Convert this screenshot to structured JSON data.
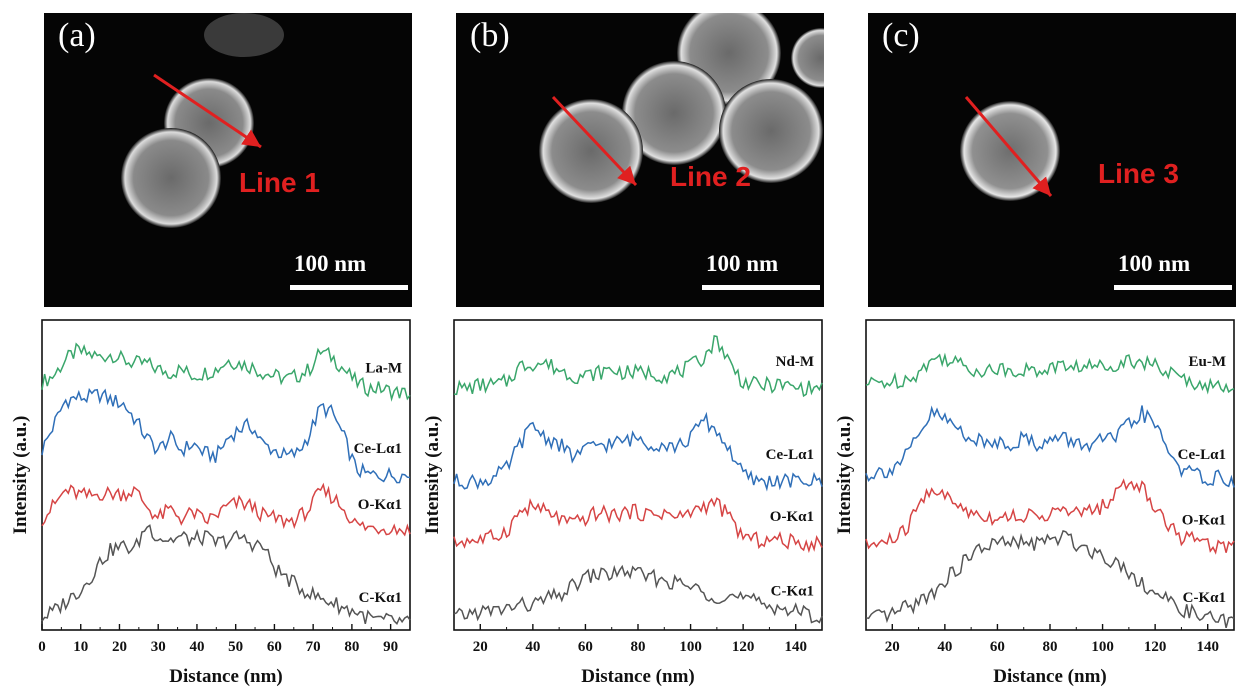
{
  "panels": [
    {
      "label": "(a)",
      "line_label": "Line 1",
      "scale_label": "100 nm",
      "ylabel": "Intensity (a.u.)",
      "xlabel": "Distance (nm)"
    },
    {
      "label": "(b)",
      "line_label": "Line 2",
      "scale_label": "100 nm",
      "ylabel": "Intensity (a.u.)",
      "xlabel": "Distance (nm)"
    },
    {
      "label": "(c)",
      "line_label": "Line 3",
      "scale_label": "100 nm",
      "ylabel": "Intensity (a.u.)",
      "xlabel": "Distance (nm)"
    }
  ],
  "colors": {
    "green": "#3aa66b",
    "blue": "#2f6fb8",
    "red": "#d64545",
    "gray": "#555555",
    "arrow": "#e02020"
  },
  "chart_data": [
    {
      "type": "line",
      "xlabel": "Distance (nm)",
      "ylabel": "Intensity (a.u.)",
      "xlim": [
        0,
        95
      ],
      "xticks": [
        0,
        10,
        20,
        30,
        40,
        50,
        60,
        70,
        80,
        90
      ],
      "series": [
        {
          "name": "La-M",
          "color": "#3aa66b",
          "x": [
            0,
            3,
            6,
            9,
            12,
            15,
            18,
            21,
            24,
            27,
            30,
            33,
            36,
            39,
            42,
            45,
            48,
            51,
            54,
            57,
            60,
            63,
            66,
            69,
            72,
            75,
            78,
            81,
            84,
            87,
            90,
            95
          ],
          "y": [
            0.8,
            0.82,
            0.87,
            0.9,
            0.89,
            0.88,
            0.89,
            0.87,
            0.86,
            0.86,
            0.84,
            0.83,
            0.84,
            0.82,
            0.83,
            0.84,
            0.87,
            0.86,
            0.85,
            0.83,
            0.82,
            0.81,
            0.82,
            0.84,
            0.9,
            0.88,
            0.84,
            0.8,
            0.78,
            0.78,
            0.77,
            0.76
          ]
        },
        {
          "name": "Ce-Lα1",
          "color": "#2f6fb8",
          "x": [
            0,
            3,
            6,
            9,
            12,
            15,
            18,
            21,
            24,
            27,
            30,
            33,
            36,
            39,
            42,
            45,
            48,
            51,
            54,
            57,
            60,
            63,
            66,
            69,
            72,
            75,
            78,
            81,
            84,
            87,
            90,
            95
          ],
          "y": [
            0.58,
            0.66,
            0.74,
            0.75,
            0.75,
            0.76,
            0.74,
            0.73,
            0.68,
            0.62,
            0.58,
            0.62,
            0.58,
            0.6,
            0.57,
            0.56,
            0.62,
            0.65,
            0.66,
            0.6,
            0.58,
            0.56,
            0.57,
            0.63,
            0.72,
            0.7,
            0.62,
            0.52,
            0.5,
            0.5,
            0.5,
            0.5
          ]
        },
        {
          "name": "O-Kα1",
          "color": "#d64545",
          "x": [
            0,
            3,
            6,
            9,
            12,
            15,
            18,
            21,
            24,
            27,
            30,
            33,
            36,
            39,
            42,
            45,
            48,
            51,
            54,
            57,
            60,
            63,
            66,
            69,
            72,
            75,
            78,
            81,
            84,
            87,
            90,
            95
          ],
          "y": [
            0.36,
            0.4,
            0.45,
            0.44,
            0.43,
            0.44,
            0.44,
            0.44,
            0.45,
            0.4,
            0.36,
            0.39,
            0.36,
            0.38,
            0.35,
            0.37,
            0.4,
            0.41,
            0.4,
            0.37,
            0.36,
            0.35,
            0.36,
            0.39,
            0.45,
            0.43,
            0.39,
            0.34,
            0.33,
            0.33,
            0.33,
            0.32
          ]
        },
        {
          "name": "C-Kα1",
          "color": "#555555",
          "x": [
            0,
            3,
            6,
            9,
            12,
            15,
            18,
            21,
            24,
            27,
            30,
            33,
            36,
            39,
            42,
            45,
            48,
            51,
            54,
            57,
            60,
            63,
            66,
            69,
            72,
            75,
            78,
            81,
            84,
            87,
            90,
            95
          ],
          "y": [
            0.04,
            0.06,
            0.09,
            0.12,
            0.16,
            0.22,
            0.26,
            0.27,
            0.26,
            0.34,
            0.3,
            0.29,
            0.3,
            0.29,
            0.3,
            0.28,
            0.29,
            0.3,
            0.28,
            0.27,
            0.2,
            0.17,
            0.14,
            0.12,
            0.1,
            0.09,
            0.07,
            0.06,
            0.04,
            0.03,
            0.03,
            0.02
          ]
        }
      ],
      "grid": false
    },
    {
      "type": "line",
      "xlabel": "Distance (nm)",
      "ylabel": "Intensity (a.u.)",
      "xlim": [
        10,
        150
      ],
      "xticks": [
        20,
        40,
        60,
        80,
        100,
        120,
        140
      ],
      "series": [
        {
          "name": "Nd-M",
          "color": "#3aa66b",
          "x": [
            10,
            15,
            20,
            25,
            30,
            35,
            40,
            45,
            50,
            55,
            60,
            65,
            70,
            75,
            80,
            85,
            90,
            95,
            100,
            105,
            110,
            115,
            120,
            125,
            130,
            135,
            140,
            145,
            150
          ],
          "y": [
            0.78,
            0.78,
            0.79,
            0.79,
            0.8,
            0.85,
            0.86,
            0.86,
            0.84,
            0.82,
            0.82,
            0.83,
            0.84,
            0.83,
            0.83,
            0.83,
            0.82,
            0.83,
            0.85,
            0.88,
            0.94,
            0.86,
            0.8,
            0.79,
            0.79,
            0.79,
            0.78,
            0.78,
            0.78
          ]
        },
        {
          "name": "Ce-Lα1",
          "color": "#2f6fb8",
          "x": [
            10,
            15,
            20,
            25,
            30,
            35,
            40,
            45,
            50,
            55,
            60,
            65,
            70,
            75,
            80,
            85,
            90,
            95,
            100,
            105,
            110,
            115,
            120,
            125,
            130,
            135,
            140,
            145,
            150
          ],
          "y": [
            0.48,
            0.48,
            0.48,
            0.49,
            0.52,
            0.6,
            0.66,
            0.62,
            0.6,
            0.56,
            0.58,
            0.6,
            0.6,
            0.61,
            0.62,
            0.6,
            0.6,
            0.59,
            0.62,
            0.68,
            0.64,
            0.58,
            0.5,
            0.48,
            0.48,
            0.48,
            0.48,
            0.48,
            0.48
          ]
        },
        {
          "name": "O-Kα1",
          "color": "#d64545",
          "x": [
            10,
            15,
            20,
            25,
            30,
            35,
            40,
            45,
            50,
            55,
            60,
            65,
            70,
            75,
            80,
            85,
            90,
            95,
            100,
            105,
            110,
            115,
            120,
            125,
            130,
            135,
            140,
            145,
            150
          ],
          "y": [
            0.28,
            0.29,
            0.29,
            0.3,
            0.32,
            0.38,
            0.4,
            0.38,
            0.36,
            0.34,
            0.36,
            0.38,
            0.37,
            0.38,
            0.38,
            0.37,
            0.38,
            0.36,
            0.38,
            0.4,
            0.41,
            0.36,
            0.3,
            0.29,
            0.29,
            0.29,
            0.28,
            0.28,
            0.28
          ]
        },
        {
          "name": "C-Kα1",
          "color": "#555555",
          "x": [
            10,
            15,
            20,
            25,
            30,
            35,
            40,
            45,
            50,
            55,
            60,
            65,
            70,
            75,
            80,
            85,
            90,
            95,
            100,
            105,
            110,
            115,
            120,
            125,
            130,
            135,
            140,
            145,
            150
          ],
          "y": [
            0.04,
            0.05,
            0.06,
            0.06,
            0.07,
            0.08,
            0.08,
            0.1,
            0.11,
            0.14,
            0.17,
            0.18,
            0.18,
            0.19,
            0.18,
            0.17,
            0.16,
            0.15,
            0.14,
            0.12,
            0.11,
            0.11,
            0.1,
            0.09,
            0.08,
            0.07,
            0.06,
            0.05,
            0.04
          ]
        }
      ],
      "grid": false
    },
    {
      "type": "line",
      "xlabel": "Distance (nm)",
      "ylabel": "Intensity (a.u.)",
      "xlim": [
        10,
        150
      ],
      "xticks": [
        20,
        40,
        60,
        80,
        100,
        120,
        140
      ],
      "series": [
        {
          "name": "Eu-M",
          "color": "#3aa66b",
          "x": [
            10,
            15,
            20,
            25,
            30,
            35,
            40,
            45,
            50,
            55,
            60,
            65,
            70,
            75,
            80,
            85,
            90,
            95,
            100,
            105,
            110,
            115,
            120,
            125,
            130,
            135,
            140,
            145,
            150
          ],
          "y": [
            0.79,
            0.8,
            0.8,
            0.81,
            0.83,
            0.87,
            0.88,
            0.86,
            0.84,
            0.84,
            0.84,
            0.84,
            0.84,
            0.83,
            0.85,
            0.85,
            0.85,
            0.85,
            0.85,
            0.86,
            0.87,
            0.87,
            0.85,
            0.83,
            0.81,
            0.8,
            0.79,
            0.78,
            0.78
          ]
        },
        {
          "name": "Ce-Lα1",
          "color": "#2f6fb8",
          "x": [
            10,
            15,
            20,
            25,
            30,
            35,
            40,
            45,
            50,
            55,
            60,
            65,
            70,
            75,
            80,
            85,
            90,
            95,
            100,
            105,
            110,
            115,
            120,
            125,
            130,
            135,
            140,
            145,
            150
          ],
          "y": [
            0.5,
            0.51,
            0.52,
            0.56,
            0.62,
            0.7,
            0.68,
            0.65,
            0.62,
            0.6,
            0.61,
            0.6,
            0.62,
            0.6,
            0.61,
            0.62,
            0.6,
            0.6,
            0.61,
            0.62,
            0.66,
            0.7,
            0.66,
            0.58,
            0.52,
            0.5,
            0.49,
            0.49,
            0.48
          ]
        },
        {
          "name": "O-Kα1",
          "color": "#d64545",
          "x": [
            10,
            15,
            20,
            25,
            30,
            35,
            40,
            45,
            50,
            55,
            60,
            65,
            70,
            75,
            80,
            85,
            90,
            95,
            100,
            105,
            110,
            115,
            120,
            125,
            130,
            135,
            140,
            145,
            150
          ],
          "y": [
            0.27,
            0.28,
            0.29,
            0.32,
            0.4,
            0.46,
            0.43,
            0.4,
            0.38,
            0.37,
            0.36,
            0.37,
            0.37,
            0.36,
            0.38,
            0.38,
            0.38,
            0.38,
            0.4,
            0.44,
            0.48,
            0.46,
            0.4,
            0.34,
            0.3,
            0.29,
            0.28,
            0.27,
            0.27
          ]
        },
        {
          "name": "C-Kα1",
          "color": "#555555",
          "x": [
            10,
            15,
            20,
            25,
            30,
            35,
            40,
            45,
            50,
            55,
            60,
            65,
            70,
            75,
            80,
            85,
            90,
            95,
            100,
            105,
            110,
            115,
            120,
            125,
            130,
            135,
            140,
            145,
            150
          ],
          "y": [
            0.03,
            0.04,
            0.05,
            0.07,
            0.09,
            0.12,
            0.16,
            0.2,
            0.24,
            0.27,
            0.28,
            0.28,
            0.28,
            0.28,
            0.29,
            0.3,
            0.28,
            0.26,
            0.24,
            0.22,
            0.19,
            0.15,
            0.12,
            0.09,
            0.07,
            0.05,
            0.04,
            0.03,
            0.02
          ]
        }
      ],
      "grid": false
    }
  ]
}
